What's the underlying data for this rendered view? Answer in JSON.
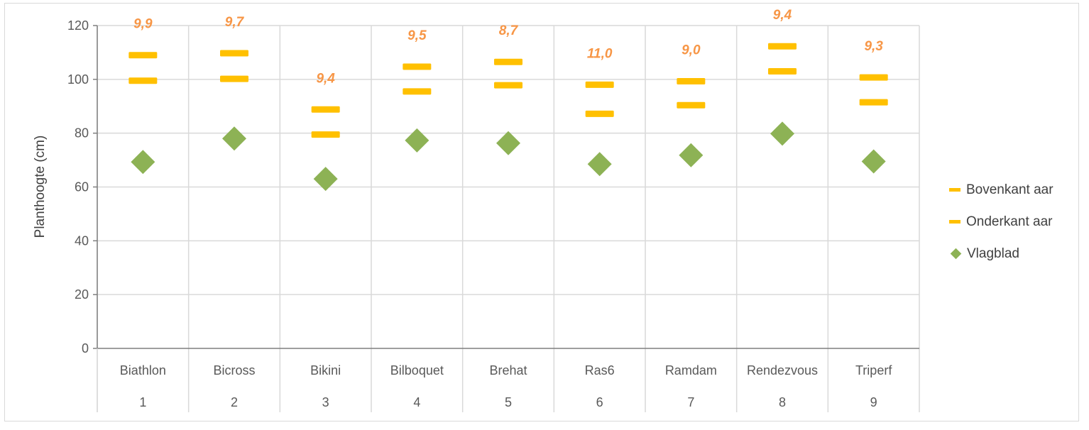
{
  "chart_data": {
    "type": "scatter",
    "ylabel": "Planthoogte (cm)",
    "xlabel": "",
    "ylim": [
      0,
      120
    ],
    "yticks": [
      0,
      20,
      40,
      60,
      80,
      100,
      120
    ],
    "grid": true,
    "legend_position": "right",
    "categories": [
      "Biathlon",
      "Bicross",
      "Bikini",
      "Bilboquet",
      "Brehat",
      "Ras6",
      "Ramdam",
      "Rendezvous",
      "Triperf"
    ],
    "category_numbers": [
      "1",
      "2",
      "3",
      "4",
      "5",
      "6",
      "7",
      "8",
      "9"
    ],
    "series": [
      {
        "name": "Bovenkant aar",
        "marker": "dash",
        "color": "#ffc000",
        "values": [
          109,
          109.7,
          88.8,
          104.7,
          106.5,
          98,
          99.3,
          112.3,
          100.7
        ]
      },
      {
        "name": "Onderkant aar",
        "marker": "dash",
        "color": "#ffc000",
        "values": [
          99.5,
          100.2,
          79.5,
          95.5,
          97.8,
          87.2,
          90.4,
          103,
          91.5
        ]
      },
      {
        "name": "Vlagblad",
        "marker": "diamond",
        "color": "#8db255",
        "values": [
          69.3,
          78,
          63,
          77.3,
          76.3,
          68.5,
          71.8,
          79.8,
          69.5
        ]
      }
    ],
    "annotations": {
      "color": "#f79646",
      "values": [
        "9,9",
        "9,7",
        "9,4",
        "9,5",
        "8,7",
        "11,0",
        "9,0",
        "9,4",
        "9,3"
      ]
    }
  },
  "legend": {
    "items": [
      "Bovenkant aar",
      "Onderkant aar",
      "Vlagblad"
    ]
  }
}
